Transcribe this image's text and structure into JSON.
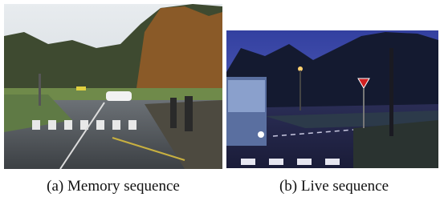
{
  "figure": {
    "subfigures": [
      {
        "caption": "(a) Memory sequence"
      },
      {
        "caption": "(b) Live sequence"
      }
    ]
  }
}
